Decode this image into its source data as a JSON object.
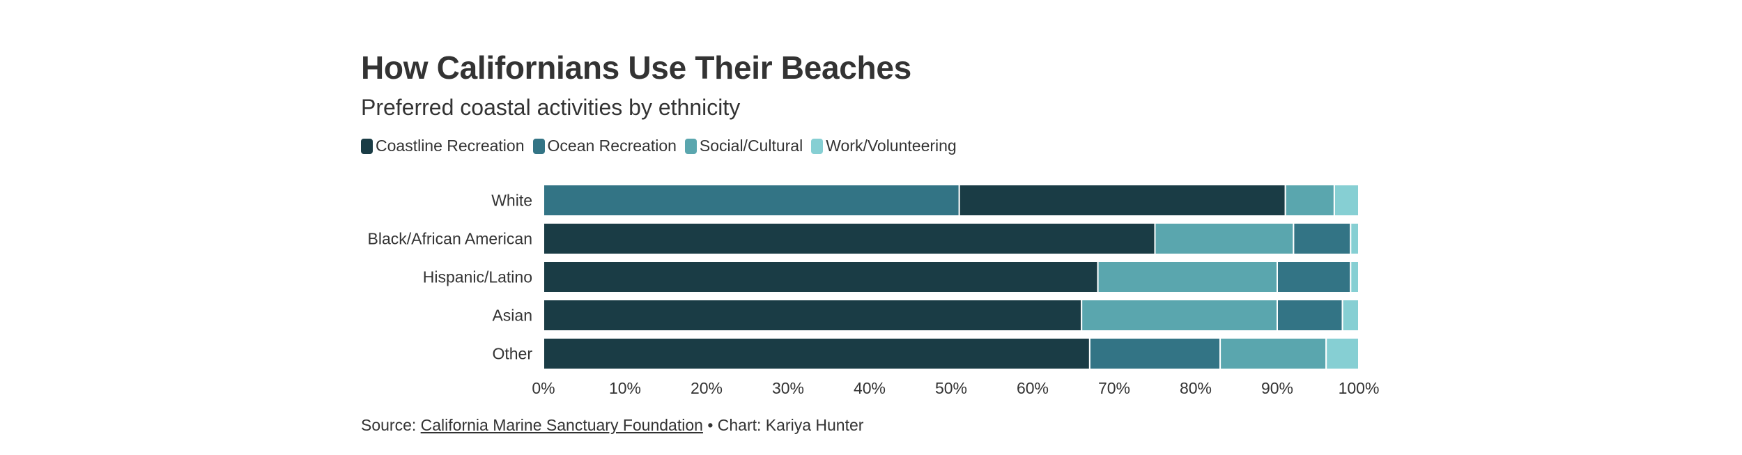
{
  "chart_data": {
    "type": "bar",
    "orientation": "horizontal",
    "stacked": true,
    "normalized": true,
    "title": "How Californians Use Their Beaches",
    "subtitle": "Preferred coastal activities by ethnicity",
    "categories": [
      "White",
      "Black/African American",
      "Hispanic/Latino",
      "Asian",
      "Other"
    ],
    "series": [
      {
        "name": "Coastline Recreation",
        "color": "#1a3c45",
        "values": [
          40,
          75,
          68,
          66,
          67
        ]
      },
      {
        "name": "Ocean Recreation",
        "color": "#337485",
        "values": [
          51,
          7,
          9,
          8,
          16
        ]
      },
      {
        "name": "Social/Cultural",
        "color": "#5aa6ae",
        "values": [
          6,
          17,
          22,
          24,
          13
        ]
      },
      {
        "name": "Work/Volunteering",
        "color": "#86cfd3",
        "values": [
          3,
          1,
          1,
          2,
          4
        ]
      }
    ],
    "segment_order": [
      [
        1,
        0,
        2,
        3
      ],
      [
        0,
        2,
        1,
        3
      ],
      [
        0,
        2,
        1,
        3
      ],
      [
        0,
        2,
        1,
        3
      ],
      [
        0,
        1,
        2,
        3
      ]
    ],
    "x_ticks": [
      "0%",
      "10%",
      "20%",
      "30%",
      "40%",
      "50%",
      "60%",
      "70%",
      "80%",
      "90%",
      "100%"
    ],
    "xlim": [
      0,
      100
    ],
    "legend_position": "top-left"
  },
  "footer": {
    "source_prefix": "Source: ",
    "source_link": "California Marine Sanctuary Foundation",
    "credit": " • Chart: Kariya Hunter"
  }
}
